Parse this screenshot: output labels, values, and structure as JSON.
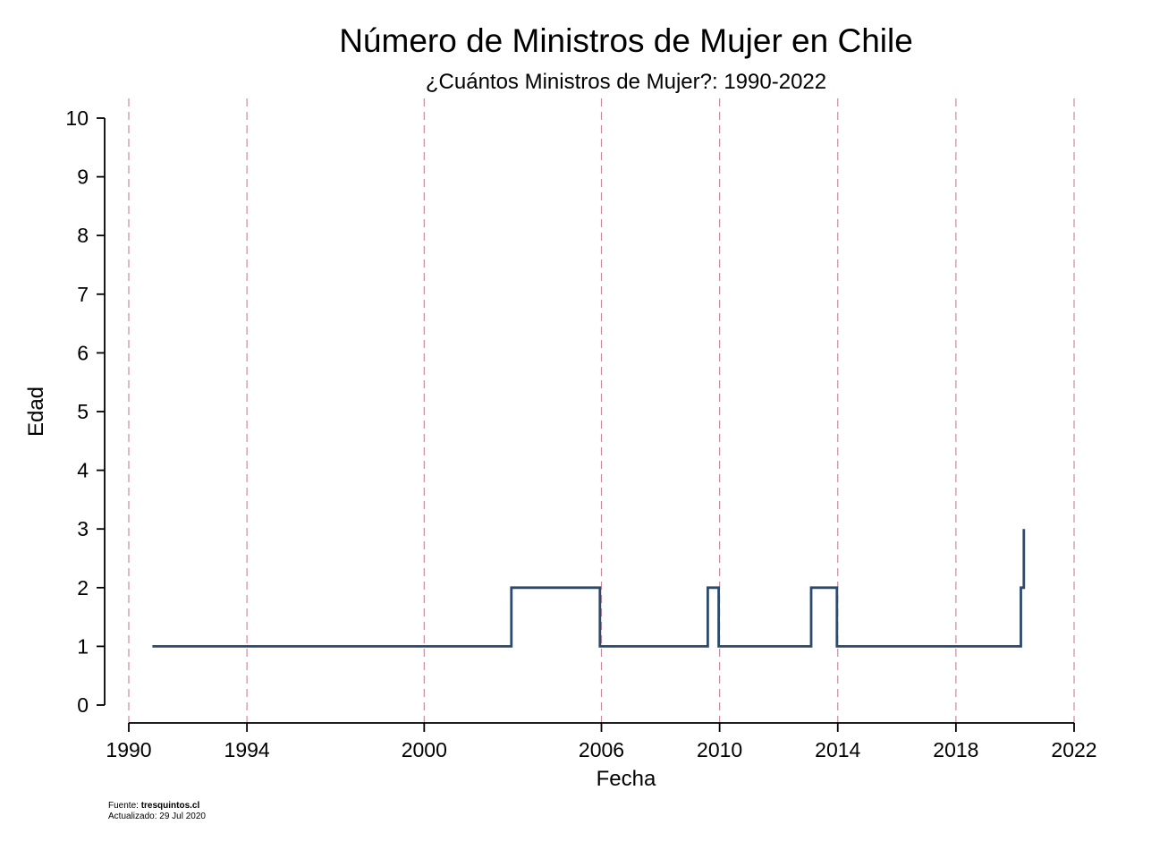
{
  "chart_data": {
    "type": "line",
    "step": true,
    "title": "Número de Ministros de Mujer en Chile",
    "subtitle": "¿Cuántos Ministros de Mujer?: 1990-2022",
    "xlabel": "Fecha",
    "ylabel": "Edad",
    "xlim": [
      1990,
      2022
    ],
    "ylim": [
      0,
      10
    ],
    "x_ticks": [
      {
        "value": 1990,
        "label": "1990"
      },
      {
        "value": 1994,
        "label": "1994"
      },
      {
        "value": 2000,
        "label": "2000"
      },
      {
        "value": 2006,
        "label": "2006"
      },
      {
        "value": 2010,
        "label": "2010"
      },
      {
        "value": 2014,
        "label": "2014"
      },
      {
        "value": 2018,
        "label": "2018"
      },
      {
        "value": 2022,
        "label": "2022"
      }
    ],
    "y_ticks": [
      {
        "value": 0,
        "label": "0"
      },
      {
        "value": 1,
        "label": "1"
      },
      {
        "value": 2,
        "label": "2"
      },
      {
        "value": 3,
        "label": "3"
      },
      {
        "value": 4,
        "label": "4"
      },
      {
        "value": 5,
        "label": "5"
      },
      {
        "value": 6,
        "label": "6"
      },
      {
        "value": 7,
        "label": "7"
      },
      {
        "value": 8,
        "label": "8"
      },
      {
        "value": 9,
        "label": "9"
      },
      {
        "value": 10,
        "label": "10"
      }
    ],
    "reference_lines_x": [
      1990,
      1994,
      2000,
      2006,
      2010,
      2014,
      2018,
      2022
    ],
    "series": [
      {
        "points": [
          {
            "x": 1990.8,
            "y": 1
          },
          {
            "x": 2002.95,
            "y": 1
          },
          {
            "x": 2002.95,
            "y": 2
          },
          {
            "x": 2005.95,
            "y": 2
          },
          {
            "x": 2005.95,
            "y": 1
          },
          {
            "x": 2009.6,
            "y": 1
          },
          {
            "x": 2009.6,
            "y": 2
          },
          {
            "x": 2009.97,
            "y": 2
          },
          {
            "x": 2009.97,
            "y": 1
          },
          {
            "x": 2013.1,
            "y": 1
          },
          {
            "x": 2013.1,
            "y": 2
          },
          {
            "x": 2013.97,
            "y": 2
          },
          {
            "x": 2013.97,
            "y": 1
          },
          {
            "x": 2020.2,
            "y": 1
          },
          {
            "x": 2020.2,
            "y": 2
          },
          {
            "x": 2020.3,
            "y": 2
          },
          {
            "x": 2020.3,
            "y": 3
          }
        ]
      }
    ],
    "colors": {
      "line": "#2c4a6b",
      "reference": "#c98ba3",
      "axis": "#000000"
    },
    "grid": false
  },
  "footer": {
    "source_label": "Fuente: ",
    "source_name": "tresquintos.cl",
    "updated": "Actualizado: 29 Jul 2020"
  }
}
